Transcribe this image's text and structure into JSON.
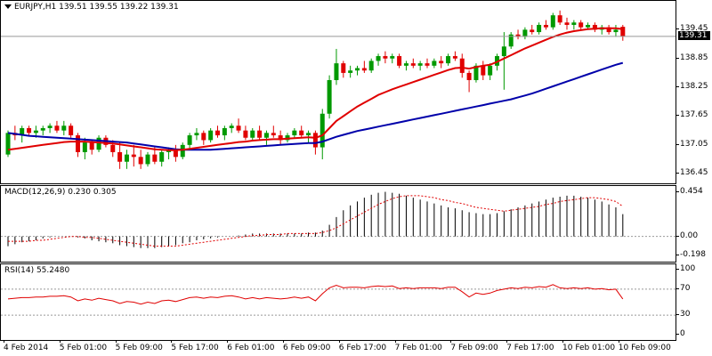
{
  "price_pane": {
    "title": "EURJPY,H1  139.51 139.55 139.22 139.31",
    "scale_labels": [
      "139.45",
      "138.85",
      "138.25",
      "137.65",
      "137.05",
      "136.45"
    ],
    "scale_values": [
      139.45,
      138.85,
      138.25,
      137.65,
      137.05,
      136.45
    ],
    "last_price_label": "139.31",
    "last_price": 139.31,
    "y_range": [
      136.25,
      140.05
    ],
    "candle_up_color": "#009900",
    "candle_down_color": "#e00000",
    "ma_fast_color": "#e00000",
    "ma_slow_color": "#0000aa"
  },
  "macd_pane": {
    "title": "MACD(12,26,9) 0.230 0.305",
    "scale_labels": [
      "0.454",
      "0.00",
      "-0.198"
    ],
    "scale_values": [
      0.454,
      0.0,
      -0.198
    ],
    "zero_label": "0.00",
    "y_range": [
      -0.26,
      0.52
    ],
    "signal_color": "#e00000"
  },
  "rsi_pane": {
    "title": "RSI(14) 55.2480",
    "scale_labels": [
      "100",
      "70",
      "30",
      "0"
    ],
    "scale_values": [
      100,
      70,
      30,
      0
    ],
    "y_range": [
      0,
      100
    ],
    "line_color": "#e00000",
    "levels": [
      70,
      30
    ]
  },
  "time_axis": {
    "labels": [
      "4 Feb 2014",
      "5 Feb 01:00",
      "5 Feb 09:00",
      "5 Feb 17:00",
      "6 Feb 01:00",
      "6 Feb 09:00",
      "6 Feb 17:00",
      "7 Feb 01:00",
      "7 Feb 09:00",
      "7 Feb 17:00",
      "10 Feb 01:00",
      "10 Feb 09:00"
    ],
    "label_bar_index": [
      0,
      8,
      16,
      24,
      32,
      40,
      48,
      56,
      64,
      72,
      80,
      88
    ]
  },
  "chart_data": {
    "type": "candlestick",
    "symbol": "EURJPY",
    "timeframe": "H1",
    "ohlc": [
      [
        136.85,
        137.35,
        136.8,
        137.3
      ],
      [
        137.3,
        137.45,
        137.15,
        137.25
      ],
      [
        137.25,
        137.45,
        137.1,
        137.4
      ],
      [
        137.4,
        137.45,
        137.25,
        137.3
      ],
      [
        137.3,
        137.45,
        137.2,
        137.35
      ],
      [
        137.35,
        137.45,
        137.25,
        137.4
      ],
      [
        137.4,
        137.5,
        137.3,
        137.45
      ],
      [
        137.45,
        137.55,
        137.3,
        137.35
      ],
      [
        137.35,
        137.55,
        137.25,
        137.45
      ],
      [
        137.45,
        137.5,
        137.2,
        137.25
      ],
      [
        137.25,
        137.3,
        136.8,
        136.9
      ],
      [
        136.9,
        137.2,
        136.75,
        137.1
      ],
      [
        137.1,
        137.15,
        136.85,
        136.95
      ],
      [
        136.95,
        137.25,
        136.9,
        137.2
      ],
      [
        137.2,
        137.25,
        137.0,
        137.05
      ],
      [
        137.05,
        137.15,
        136.8,
        136.9
      ],
      [
        136.9,
        137.1,
        136.55,
        136.7
      ],
      [
        136.7,
        136.95,
        136.55,
        136.85
      ],
      [
        136.85,
        137.05,
        136.6,
        136.8
      ],
      [
        136.8,
        136.95,
        136.55,
        136.65
      ],
      [
        136.65,
        136.9,
        136.6,
        136.85
      ],
      [
        136.85,
        137.0,
        136.65,
        136.7
      ],
      [
        136.7,
        136.95,
        136.6,
        136.9
      ],
      [
        136.9,
        137.0,
        136.75,
        136.95
      ],
      [
        136.95,
        137.05,
        136.7,
        136.8
      ],
      [
        136.8,
        137.1,
        136.75,
        137.05
      ],
      [
        137.05,
        137.3,
        136.95,
        137.25
      ],
      [
        137.25,
        137.4,
        137.15,
        137.3
      ],
      [
        137.3,
        137.35,
        137.05,
        137.15
      ],
      [
        137.15,
        137.4,
        137.1,
        137.35
      ],
      [
        137.35,
        137.45,
        137.2,
        137.25
      ],
      [
        137.25,
        137.45,
        137.15,
        137.4
      ],
      [
        137.4,
        137.5,
        137.3,
        137.45
      ],
      [
        137.45,
        137.6,
        137.3,
        137.35
      ],
      [
        137.35,
        137.45,
        137.15,
        137.2
      ],
      [
        137.2,
        137.4,
        137.15,
        137.35
      ],
      [
        137.35,
        137.45,
        137.15,
        137.2
      ],
      [
        137.2,
        137.35,
        137.05,
        137.3
      ],
      [
        137.3,
        137.45,
        137.2,
        137.25
      ],
      [
        137.25,
        137.35,
        137.05,
        137.15
      ],
      [
        137.15,
        137.3,
        137.1,
        137.25
      ],
      [
        137.25,
        137.4,
        137.2,
        137.35
      ],
      [
        137.35,
        137.45,
        137.2,
        137.25
      ],
      [
        137.25,
        137.35,
        137.1,
        137.3
      ],
      [
        137.3,
        137.35,
        136.85,
        137.0
      ],
      [
        137.0,
        137.8,
        136.75,
        137.7
      ],
      [
        137.7,
        138.5,
        137.6,
        138.4
      ],
      [
        138.4,
        139.05,
        138.3,
        138.75
      ],
      [
        138.75,
        138.8,
        138.45,
        138.55
      ],
      [
        138.55,
        138.7,
        138.45,
        138.6
      ],
      [
        138.6,
        138.7,
        138.5,
        138.65
      ],
      [
        138.65,
        138.8,
        138.55,
        138.6
      ],
      [
        138.6,
        138.85,
        138.55,
        138.8
      ],
      [
        138.8,
        138.95,
        138.7,
        138.9
      ],
      [
        138.9,
        139.0,
        138.75,
        138.85
      ],
      [
        138.85,
        138.95,
        138.75,
        138.9
      ],
      [
        138.9,
        138.95,
        138.65,
        138.7
      ],
      [
        138.7,
        138.8,
        138.6,
        138.75
      ],
      [
        138.75,
        138.85,
        138.65,
        138.7
      ],
      [
        138.7,
        138.8,
        138.6,
        138.75
      ],
      [
        138.75,
        138.85,
        138.65,
        138.7
      ],
      [
        138.7,
        138.85,
        138.65,
        138.8
      ],
      [
        138.8,
        138.9,
        138.65,
        138.75
      ],
      [
        138.75,
        138.95,
        138.7,
        138.9
      ],
      [
        138.9,
        139.0,
        138.8,
        138.85
      ],
      [
        138.85,
        138.95,
        138.45,
        138.55
      ],
      [
        138.55,
        138.6,
        138.15,
        138.4
      ],
      [
        138.4,
        138.75,
        138.35,
        138.7
      ],
      [
        138.7,
        138.8,
        138.4,
        138.5
      ],
      [
        138.5,
        138.75,
        138.4,
        138.7
      ],
      [
        138.7,
        138.95,
        138.6,
        138.9
      ],
      [
        138.9,
        139.4,
        138.2,
        139.1
      ],
      [
        139.1,
        139.4,
        139.05,
        139.35
      ],
      [
        139.35,
        139.45,
        139.25,
        139.3
      ],
      [
        139.3,
        139.5,
        139.25,
        139.45
      ],
      [
        139.45,
        139.55,
        139.35,
        139.4
      ],
      [
        139.4,
        139.6,
        139.35,
        139.55
      ],
      [
        139.55,
        139.65,
        139.45,
        139.5
      ],
      [
        139.5,
        139.8,
        139.45,
        139.75
      ],
      [
        139.75,
        139.85,
        139.55,
        139.6
      ],
      [
        139.6,
        139.7,
        139.45,
        139.55
      ],
      [
        139.55,
        139.65,
        139.45,
        139.6
      ],
      [
        139.6,
        139.65,
        139.45,
        139.5
      ],
      [
        139.5,
        139.6,
        139.45,
        139.55
      ],
      [
        139.55,
        139.6,
        139.4,
        139.45
      ],
      [
        139.45,
        139.55,
        139.35,
        139.5
      ],
      [
        139.5,
        139.55,
        139.35,
        139.4
      ],
      [
        139.4,
        139.55,
        139.3,
        139.45
      ],
      [
        139.51,
        139.55,
        139.22,
        139.31
      ]
    ],
    "ma_fast": [
      136.95,
      136.97,
      136.99,
      137.01,
      137.03,
      137.05,
      137.07,
      137.09,
      137.11,
      137.12,
      137.12,
      137.12,
      137.11,
      137.1,
      137.09,
      137.08,
      137.06,
      137.04,
      137.02,
      137.0,
      136.98,
      136.96,
      136.95,
      136.94,
      136.94,
      136.95,
      136.97,
      136.99,
      137.01,
      137.03,
      137.05,
      137.07,
      137.09,
      137.11,
      137.12,
      137.14,
      137.15,
      137.16,
      137.17,
      137.17,
      137.18,
      137.19,
      137.2,
      137.21,
      137.2,
      137.25,
      137.4,
      137.55,
      137.65,
      137.75,
      137.85,
      137.93,
      138.01,
      138.09,
      138.15,
      138.21,
      138.26,
      138.31,
      138.36,
      138.41,
      138.46,
      138.51,
      138.56,
      138.61,
      138.65,
      138.66,
      138.64,
      138.67,
      138.7,
      138.72,
      138.78,
      138.85,
      138.92,
      138.99,
      139.06,
      139.12,
      139.18,
      139.24,
      139.3,
      139.35,
      139.39,
      139.42,
      139.44,
      139.46,
      139.47,
      139.48,
      139.48,
      139.48,
      139.46
    ],
    "ma_slow": [
      137.3,
      137.28,
      137.26,
      137.24,
      137.23,
      137.22,
      137.21,
      137.2,
      137.19,
      137.18,
      137.17,
      137.16,
      137.15,
      137.14,
      137.13,
      137.12,
      137.11,
      137.1,
      137.08,
      137.06,
      137.04,
      137.02,
      137.0,
      136.98,
      136.96,
      136.95,
      136.95,
      136.95,
      136.95,
      136.95,
      136.96,
      136.97,
      136.98,
      136.99,
      137.0,
      137.01,
      137.02,
      137.03,
      137.04,
      137.05,
      137.06,
      137.07,
      137.08,
      137.09,
      137.09,
      137.12,
      137.17,
      137.22,
      137.26,
      137.3,
      137.34,
      137.37,
      137.4,
      137.43,
      137.46,
      137.49,
      137.52,
      137.55,
      137.58,
      137.61,
      137.64,
      137.67,
      137.7,
      137.73,
      137.76,
      137.79,
      137.82,
      137.85,
      137.88,
      137.91,
      137.94,
      137.97,
      138.0,
      138.04,
      138.08,
      138.12,
      138.17,
      138.22,
      138.27,
      138.32,
      138.37,
      138.42,
      138.47,
      138.52,
      138.57,
      138.62,
      138.67,
      138.72,
      138.76
    ],
    "macd_hist": [
      -0.1,
      -0.08,
      -0.06,
      -0.05,
      -0.04,
      -0.02,
      -0.01,
      0.0,
      0.0,
      0.0,
      -0.01,
      -0.02,
      -0.04,
      -0.05,
      -0.06,
      -0.07,
      -0.09,
      -0.1,
      -0.11,
      -0.12,
      -0.12,
      -0.12,
      -0.11,
      -0.1,
      -0.09,
      -0.07,
      -0.06,
      -0.04,
      -0.03,
      -0.02,
      -0.01,
      0.0,
      0.0,
      0.01,
      0.02,
      0.03,
      0.03,
      0.03,
      0.03,
      0.03,
      0.03,
      0.03,
      0.03,
      0.04,
      0.04,
      0.06,
      0.12,
      0.2,
      0.27,
      0.32,
      0.36,
      0.4,
      0.43,
      0.45,
      0.46,
      0.45,
      0.44,
      0.42,
      0.4,
      0.38,
      0.36,
      0.34,
      0.32,
      0.3,
      0.29,
      0.27,
      0.25,
      0.24,
      0.23,
      0.23,
      0.24,
      0.26,
      0.28,
      0.3,
      0.32,
      0.34,
      0.36,
      0.38,
      0.4,
      0.41,
      0.42,
      0.42,
      0.41,
      0.4,
      0.38,
      0.36,
      0.33,
      0.3,
      0.23
    ],
    "macd_signal": [
      -0.05,
      -0.05,
      -0.05,
      -0.05,
      -0.04,
      -0.04,
      -0.03,
      -0.02,
      -0.01,
      0.0,
      0.0,
      -0.01,
      -0.01,
      -0.02,
      -0.03,
      -0.04,
      -0.05,
      -0.06,
      -0.07,
      -0.08,
      -0.09,
      -0.1,
      -0.1,
      -0.1,
      -0.1,
      -0.09,
      -0.08,
      -0.07,
      -0.06,
      -0.05,
      -0.04,
      -0.03,
      -0.02,
      -0.01,
      0.0,
      0.01,
      0.01,
      0.02,
      0.02,
      0.02,
      0.03,
      0.03,
      0.03,
      0.03,
      0.03,
      0.04,
      0.06,
      0.09,
      0.13,
      0.17,
      0.21,
      0.25,
      0.29,
      0.33,
      0.36,
      0.39,
      0.41,
      0.42,
      0.42,
      0.42,
      0.41,
      0.4,
      0.38,
      0.37,
      0.35,
      0.34,
      0.32,
      0.3,
      0.29,
      0.28,
      0.27,
      0.26,
      0.27,
      0.28,
      0.29,
      0.3,
      0.31,
      0.33,
      0.34,
      0.36,
      0.37,
      0.38,
      0.39,
      0.4,
      0.4,
      0.39,
      0.38,
      0.36,
      0.31
    ],
    "rsi": [
      55,
      56,
      57,
      57,
      58,
      58,
      59,
      59,
      60,
      58,
      52,
      55,
      53,
      56,
      54,
      52,
      48,
      51,
      50,
      47,
      50,
      48,
      52,
      53,
      51,
      54,
      57,
      58,
      56,
      58,
      57,
      59,
      60,
      58,
      55,
      57,
      55,
      57,
      56,
      55,
      56,
      58,
      56,
      58,
      52,
      63,
      72,
      76,
      72,
      73,
      73,
      72,
      74,
      75,
      74,
      75,
      71,
      72,
      71,
      72,
      72,
      72,
      71,
      73,
      73,
      66,
      58,
      64,
      62,
      64,
      68,
      70,
      72,
      71,
      73,
      72,
      74,
      73,
      77,
      72,
      71,
      72,
      71,
      72,
      70,
      71,
      69,
      70,
      55
    ]
  }
}
